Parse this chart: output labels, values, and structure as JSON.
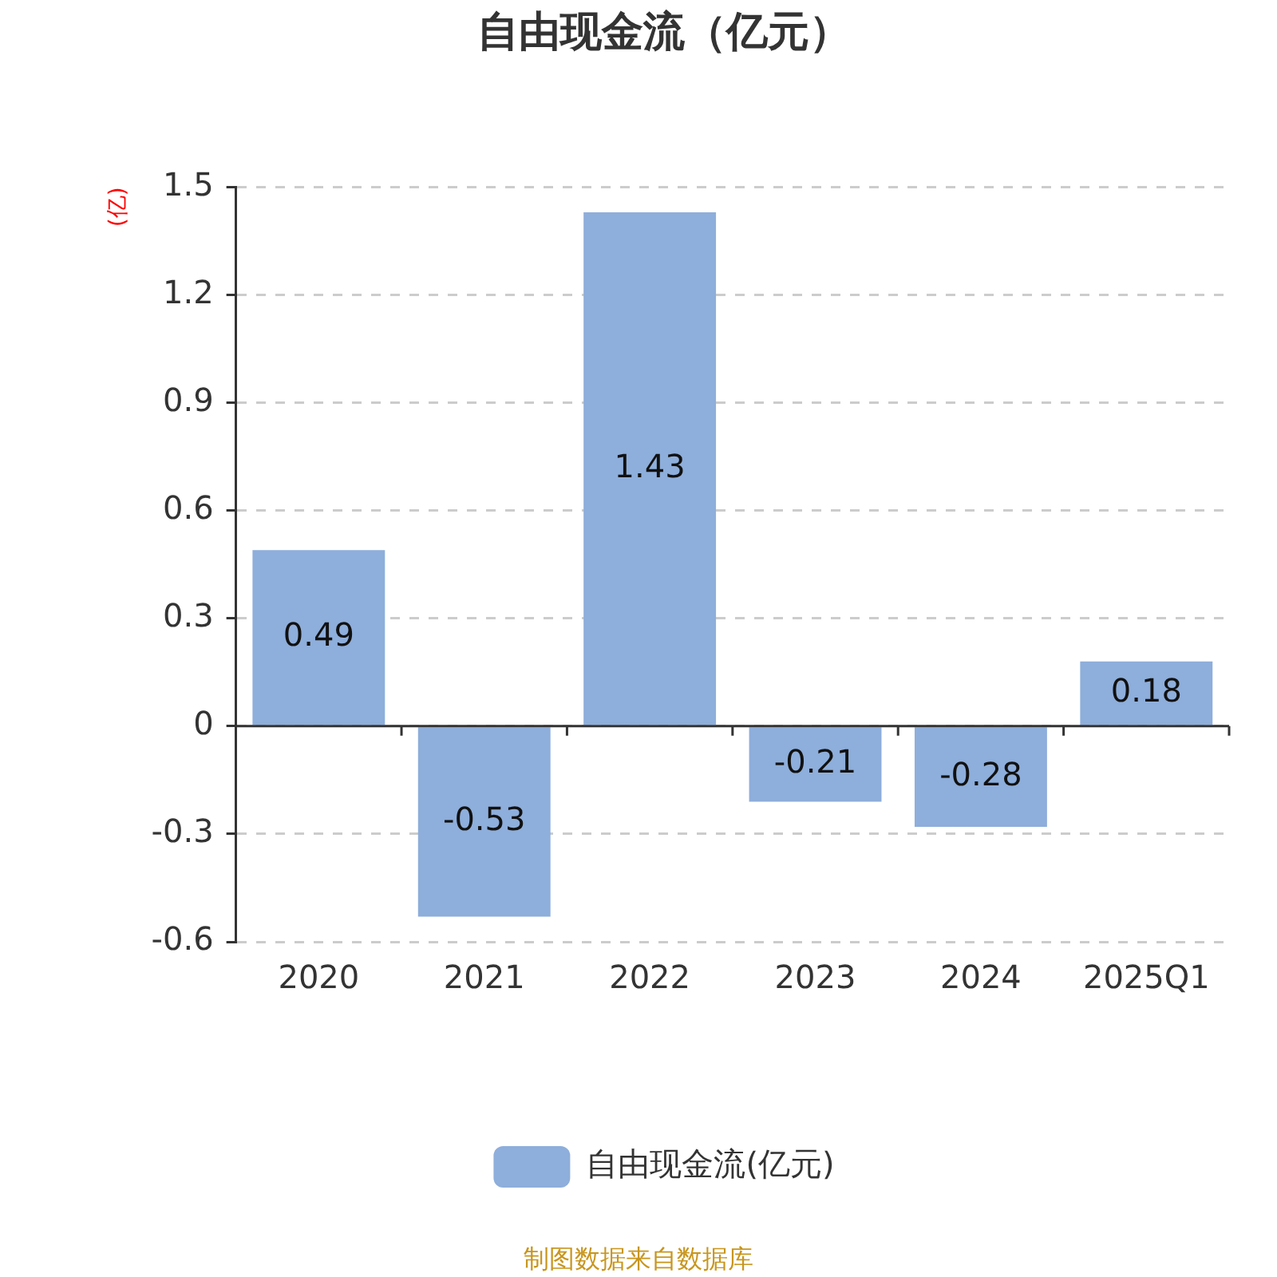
{
  "chart_data": {
    "type": "bar",
    "title": "自由现金流（亿元）",
    "ylabel": "(亿)",
    "categories": [
      "2020",
      "2021",
      "2022",
      "2023",
      "2024",
      "2025Q1"
    ],
    "series": [
      {
        "name": "自由现金流(亿元)",
        "color": "#8eaedb",
        "values": [
          0.49,
          -0.53,
          1.43,
          -0.21,
          -0.28,
          0.18
        ]
      }
    ],
    "ylim": [
      -0.6,
      1.5
    ],
    "yticks": [
      -0.6,
      -0.3,
      0,
      0.3,
      0.6,
      0.9,
      1.2,
      1.5
    ],
    "grid": "y",
    "legend": "bottom",
    "data_labels": true,
    "annotations": [
      "制图数据来自数据库"
    ]
  }
}
